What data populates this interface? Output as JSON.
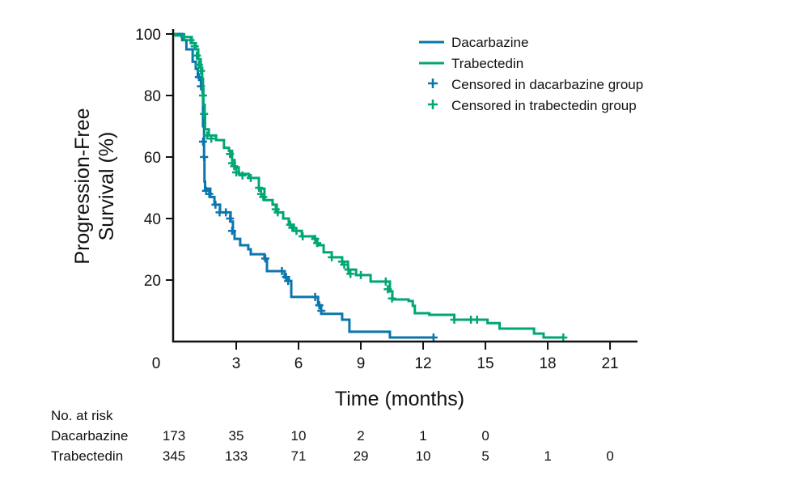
{
  "chart_data": {
    "type": "line",
    "subtype": "kaplan-meier",
    "xlabel": "Time (months)",
    "ylabel_lines": [
      "Progression-Free",
      "Survival (%)"
    ],
    "xlim": [
      0,
      22.5
    ],
    "ylim": [
      0,
      100
    ],
    "xticks": [
      0,
      3,
      6,
      9,
      12,
      15,
      18,
      21
    ],
    "xtick_labels": [
      "0",
      "3",
      "6",
      "9",
      "12",
      "15",
      "18",
      "21"
    ],
    "yticks": [
      20,
      40,
      60,
      80,
      100
    ],
    "ytick_labels": [
      "20",
      "40",
      "60",
      "80",
      "100"
    ],
    "grid": false,
    "legend_position": "top-right",
    "legend": [
      "Dacarbazine",
      "Trabectedin",
      "Censored in dacarbazine group",
      "Censored in trabectedin group"
    ],
    "series": [
      {
        "name": "Dacarbazine",
        "color": "#0a76ae",
        "steps": [
          [
            0,
            100
          ],
          [
            0.4,
            98
          ],
          [
            0.6,
            95
          ],
          [
            0.9,
            91
          ],
          [
            1.05,
            88.7
          ],
          [
            1.15,
            86
          ],
          [
            1.3,
            83
          ],
          [
            1.38,
            81
          ],
          [
            1.4,
            70
          ],
          [
            1.45,
            60
          ],
          [
            1.47,
            52
          ],
          [
            1.5,
            49.7
          ],
          [
            1.75,
            47
          ],
          [
            1.95,
            44.5
          ],
          [
            2.22,
            42
          ],
          [
            2.73,
            39
          ],
          [
            2.84,
            35.5
          ],
          [
            2.92,
            33.4
          ],
          [
            3.19,
            31.3
          ],
          [
            3.58,
            30
          ],
          [
            3.7,
            28.4
          ],
          [
            4.36,
            26.8
          ],
          [
            4.48,
            22.9
          ],
          [
            5.33,
            20.8
          ],
          [
            5.53,
            19.7
          ],
          [
            5.65,
            14.5
          ],
          [
            6.94,
            11.8
          ],
          [
            7.09,
            9
          ],
          [
            8.1,
            7.1
          ],
          [
            8.45,
            3.2
          ],
          [
            10.4,
            1.3
          ]
        ],
        "end": 12.55,
        "censored": [
          [
            1.2,
            86
          ],
          [
            1.3,
            83
          ],
          [
            1.4,
            65
          ],
          [
            1.45,
            60
          ],
          [
            1.55,
            49
          ],
          [
            1.7,
            48
          ],
          [
            2.0,
            44.5
          ],
          [
            2.2,
            42
          ],
          [
            2.5,
            42
          ],
          [
            2.7,
            40
          ],
          [
            2.8,
            36
          ],
          [
            4.4,
            27
          ],
          [
            5.2,
            22.9
          ],
          [
            5.4,
            21
          ],
          [
            5.5,
            19.7
          ],
          [
            6.8,
            14.5
          ],
          [
            7.0,
            11.8
          ],
          [
            7.1,
            10
          ],
          [
            12.5,
            1.3
          ]
        ]
      },
      {
        "name": "Trabectedin",
        "color": "#00a675",
        "steps": [
          [
            0,
            100
          ],
          [
            0.08,
            99.5
          ],
          [
            0.47,
            99
          ],
          [
            0.86,
            97
          ],
          [
            1.05,
            95
          ],
          [
            1.17,
            91.8
          ],
          [
            1.29,
            89
          ],
          [
            1.36,
            85.5
          ],
          [
            1.4,
            82
          ],
          [
            1.42,
            77
          ],
          [
            1.48,
            73.4
          ],
          [
            1.5,
            69
          ],
          [
            1.68,
            67
          ],
          [
            2.03,
            65.5
          ],
          [
            2.41,
            63
          ],
          [
            2.65,
            62
          ],
          [
            2.8,
            59
          ],
          [
            2.92,
            56.6
          ],
          [
            3.12,
            54.5
          ],
          [
            3.6,
            53.2
          ],
          [
            4.09,
            49.7
          ],
          [
            4.36,
            46
          ],
          [
            4.75,
            44.5
          ],
          [
            4.95,
            42
          ],
          [
            5.26,
            40
          ],
          [
            5.53,
            38
          ],
          [
            5.77,
            36
          ],
          [
            6.16,
            34.2
          ],
          [
            6.7,
            33.4
          ],
          [
            6.9,
            31.3
          ],
          [
            7.21,
            29
          ],
          [
            7.6,
            27.4
          ],
          [
            8.1,
            26
          ],
          [
            8.38,
            23.4
          ],
          [
            8.77,
            21.6
          ],
          [
            9.47,
            19.5
          ],
          [
            10.4,
            16.3
          ],
          [
            10.52,
            13.7
          ],
          [
            11.3,
            13.2
          ],
          [
            11.5,
            11.6
          ],
          [
            11.6,
            9.2
          ],
          [
            12.3,
            8.7
          ],
          [
            13.5,
            7.1
          ],
          [
            15.1,
            6
          ],
          [
            15.68,
            4.2
          ],
          [
            17.34,
            2.6
          ],
          [
            17.8,
            1.3
          ]
        ],
        "end": 18.77,
        "censored": [
          [
            0.5,
            99
          ],
          [
            0.8,
            98
          ],
          [
            1.0,
            96
          ],
          [
            1.1,
            93
          ],
          [
            1.2,
            90
          ],
          [
            1.3,
            88
          ],
          [
            1.4,
            80
          ],
          [
            1.45,
            74
          ],
          [
            1.6,
            67
          ],
          [
            1.8,
            66
          ],
          [
            2.7,
            61
          ],
          [
            2.8,
            58
          ],
          [
            2.9,
            57
          ],
          [
            3.0,
            55
          ],
          [
            3.3,
            54
          ],
          [
            3.7,
            53.2
          ],
          [
            4.1,
            50
          ],
          [
            4.2,
            48
          ],
          [
            4.3,
            47
          ],
          [
            4.9,
            43
          ],
          [
            5.0,
            42
          ],
          [
            5.6,
            38
          ],
          [
            5.7,
            37
          ],
          [
            5.9,
            36
          ],
          [
            6.2,
            34.2
          ],
          [
            6.8,
            33.4
          ],
          [
            6.9,
            32
          ],
          [
            7.6,
            27.4
          ],
          [
            8.1,
            26
          ],
          [
            8.2,
            25
          ],
          [
            8.4,
            23.4
          ],
          [
            8.5,
            22
          ],
          [
            9.0,
            21.6
          ],
          [
            10.2,
            19.5
          ],
          [
            10.3,
            17
          ],
          [
            10.5,
            14
          ],
          [
            13.5,
            7.1
          ],
          [
            14.3,
            7.1
          ],
          [
            14.6,
            7.1
          ],
          [
            18.75,
            1.3
          ]
        ]
      }
    ],
    "risk_table": {
      "title": "No. at risk",
      "times": [
        0,
        3,
        6,
        9,
        12,
        15,
        18,
        21
      ],
      "rows": [
        {
          "label": "Dacarbazine",
          "values": [
            "173",
            "35",
            "10",
            "2",
            "1",
            "0"
          ]
        },
        {
          "label": "Trabectedin",
          "values": [
            "345",
            "133",
            "71",
            "29",
            "10",
            "5",
            "1",
            "0"
          ]
        }
      ]
    }
  }
}
